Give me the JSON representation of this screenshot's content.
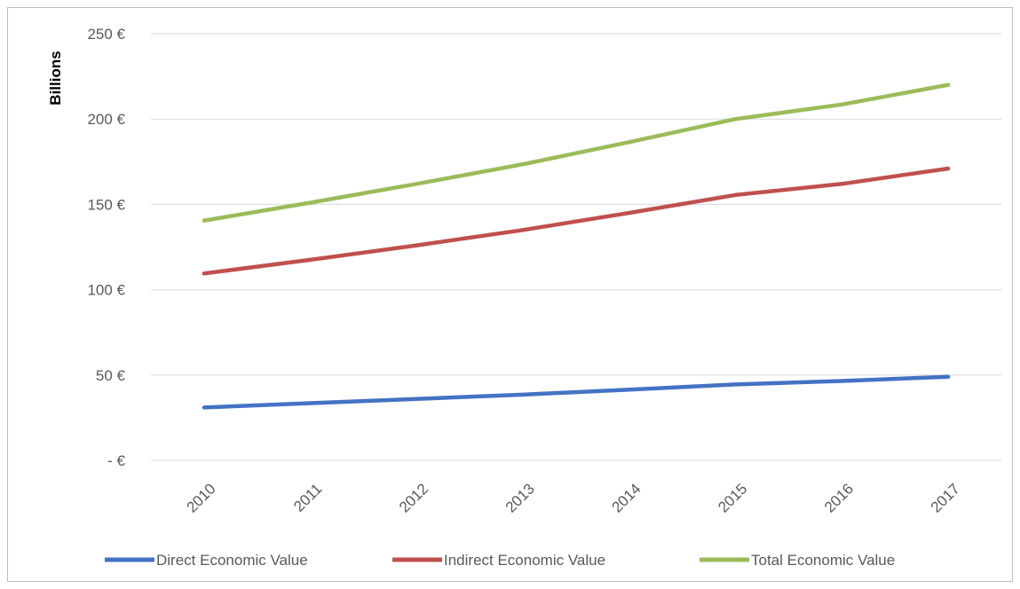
{
  "chart_data": {
    "type": "line",
    "ylabel": "Billions",
    "xlabel": "",
    "title": "",
    "ylim": [
      0,
      250
    ],
    "y_ticks": [
      0,
      50,
      100,
      150,
      200,
      250
    ],
    "y_tick_labels": [
      "-  €",
      "50 €",
      "100 €",
      "150 €",
      "200 €",
      "250 €"
    ],
    "categories": [
      "2010",
      "2011",
      "2012",
      "2013",
      "2014",
      "2015",
      "2016",
      "2017"
    ],
    "grid": true,
    "legend_position": "bottom",
    "series": [
      {
        "name": "Direct Economic Value",
        "color": "#4472c4",
        "values": [
          31,
          33.5,
          36,
          38.5,
          41.5,
          44.5,
          46.5,
          49
        ]
      },
      {
        "name": "Indirect Economic Value",
        "color": "#c0504d",
        "values": [
          109.5,
          117.5,
          126,
          135,
          145,
          155.5,
          162,
          171
        ]
      },
      {
        "name": "Total Economic Value",
        "color": "#9bbb59",
        "values": [
          140.5,
          151,
          162,
          173.5,
          186.5,
          200,
          208.5,
          220
        ]
      }
    ]
  }
}
